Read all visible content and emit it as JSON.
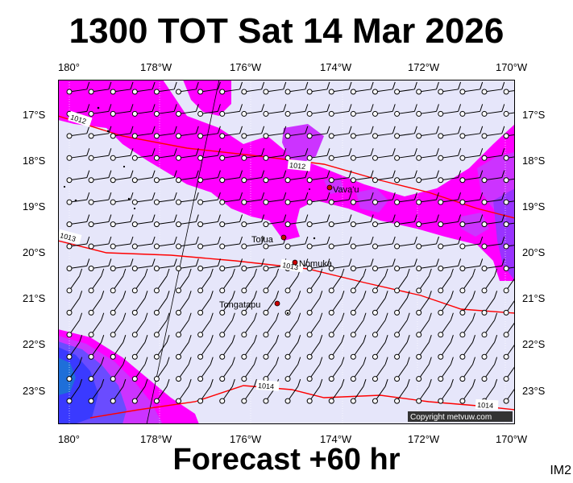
{
  "header": {
    "title": "1300 TOT Sat 14 Mar 2026"
  },
  "footer": {
    "forecast": "Forecast +60 hr",
    "product_code": "IM2"
  },
  "axes": {
    "lon_labels": [
      "180°",
      "178°W",
      "176°W",
      "174°W",
      "172°W",
      "170°W"
    ],
    "lat_labels": [
      "17°S",
      "18°S",
      "19°S",
      "20°S",
      "21°S",
      "22°S",
      "23°S"
    ]
  },
  "map": {
    "extent": {
      "lon": [
        180.25,
        190.25
      ],
      "lat": [
        -16.25,
        -23.7
      ]
    },
    "places": [
      {
        "name": "Vava'u",
        "lon": 186.0,
        "lat": -18.65
      },
      {
        "name": "Tofua",
        "lon": 184.85,
        "lat": -19.75
      },
      {
        "name": "Nomuka",
        "lon": 185.2,
        "lat": -20.25
      },
      {
        "name": "Tongatapu",
        "lon": 184.8,
        "lat": -21.15
      }
    ],
    "isobars": [
      {
        "label": "1012"
      },
      {
        "label": "1012"
      },
      {
        "label": "1013"
      },
      {
        "label": "1013"
      },
      {
        "label": "1014"
      },
      {
        "label": "1014"
      }
    ],
    "copyright": "Copyright metvuw.com"
  },
  "colors": {
    "ocean": "#e6e6fa",
    "rain_light": "#ff00ff",
    "rain_medium": "#cc33ff",
    "rain_heavy": "#9933ff",
    "rain_blue": "#3a3aff",
    "isobar": "#ff0000"
  }
}
